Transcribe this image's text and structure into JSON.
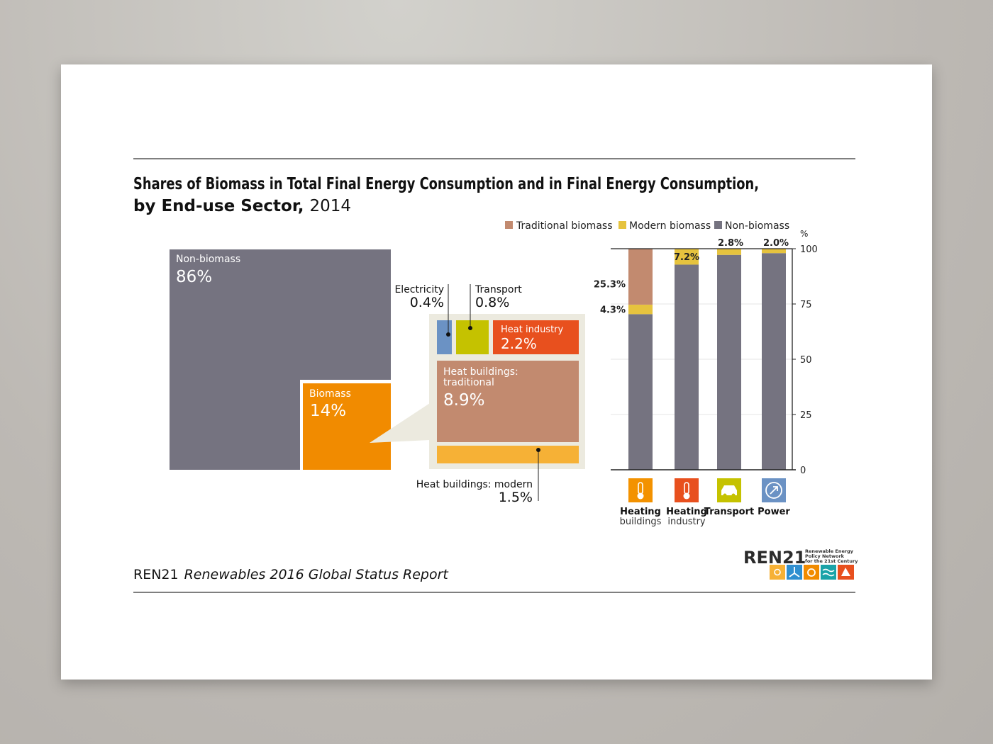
{
  "header": {
    "title_bold": "Shares of Biomass in Total Final Energy Consumption and in Final Energy Consumption,",
    "title_bold2": "by End-use Sector,",
    "title_year": "2014"
  },
  "legend": [
    {
      "label": "Traditional biomass",
      "color": "#c28a6f"
    },
    {
      "label": "Modern biomass",
      "color": "#e6c33e"
    },
    {
      "label": "Non-biomass",
      "color": "#757380"
    }
  ],
  "breakdown": {
    "nonbiomass": {
      "label": "Non-biomass",
      "value": "86%"
    },
    "biomass": {
      "label": "Biomass",
      "value": "14%"
    },
    "electricity": {
      "label": "Electricity",
      "value": "0.4%"
    },
    "transport": {
      "label": "Transport",
      "value": "0.8%"
    },
    "heat_industry": {
      "label": "Heat industry",
      "value": "2.2%"
    },
    "heat_buildings_traditional": {
      "label1": "Heat buildings:",
      "label2": "traditional",
      "value": "8.9%"
    },
    "heat_buildings_modern": {
      "label": "Heat buildings: modern",
      "value": "1.5%"
    }
  },
  "chart_data": {
    "type": "bar",
    "stacked": true,
    "categories": [
      "Heating buildings",
      "Heating industry",
      "Transport",
      "Power"
    ],
    "series": [
      {
        "name": "Non-biomass",
        "values": [
          70.4,
          92.8,
          97.2,
          98.0
        ]
      },
      {
        "name": "Modern biomass",
        "values": [
          4.3,
          7.2,
          2.8,
          2.0
        ]
      },
      {
        "name": "Traditional biomass",
        "values": [
          25.3,
          0,
          0,
          0
        ]
      }
    ],
    "bar_labels": {
      "traditional": [
        "25.3%"
      ],
      "modern": [
        "4.3%",
        "7.2%",
        "2.8%",
        "2.0%"
      ]
    },
    "ylabel": "%",
    "ylim": [
      0,
      100
    ],
    "yticks": [
      "0",
      "25",
      "50",
      "75",
      "100"
    ],
    "category_labels": [
      {
        "line1": "Heating",
        "line2": "buildings",
        "icon": "thermometer-icon",
        "color": "#f39200"
      },
      {
        "line1": "Heating",
        "line2": "industry",
        "icon": "thermometer-icon",
        "color": "#e8501e"
      },
      {
        "line1": "Transport",
        "line2": "",
        "icon": "car-icon",
        "color": "#c5c200"
      },
      {
        "line1": "Power",
        "line2": "",
        "icon": "plug-icon",
        "color": "#6b92c4"
      }
    ],
    "legend_position": "top",
    "grid": true
  },
  "footer": {
    "org": "REN21",
    "report": "Renewables 2016 Global Status Report",
    "logo_text": "REN21",
    "logo_sub1": "Renewable Energy",
    "logo_sub2": "Policy Network",
    "logo_sub3": "for the 21st Century"
  }
}
